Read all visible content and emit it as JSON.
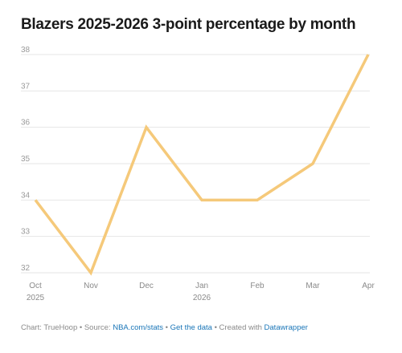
{
  "chart_data": {
    "type": "line",
    "title": "Blazers 2025-2026 3-point percentage by month",
    "xlabel": "",
    "ylabel": "",
    "categories": [
      "Oct",
      "Nov",
      "Dec",
      "Jan",
      "Feb",
      "Mar",
      "Apr"
    ],
    "category_sublabels": [
      "2025",
      "",
      "",
      "2026",
      "",
      "",
      ""
    ],
    "values": [
      34,
      32,
      36,
      34,
      34,
      35,
      38
    ],
    "ylim": [
      32,
      38
    ],
    "yticks": [
      32,
      33,
      34,
      35,
      36,
      37,
      38
    ],
    "grid": true,
    "line_color": "#f5c97a"
  },
  "footer": {
    "prefix": "Chart: TrueHoop • Source: ",
    "source_link": "NBA.com/stats",
    "sep1": " • ",
    "data_link": "Get the data",
    "sep2": " • Created with ",
    "tool_link": "Datawrapper"
  }
}
